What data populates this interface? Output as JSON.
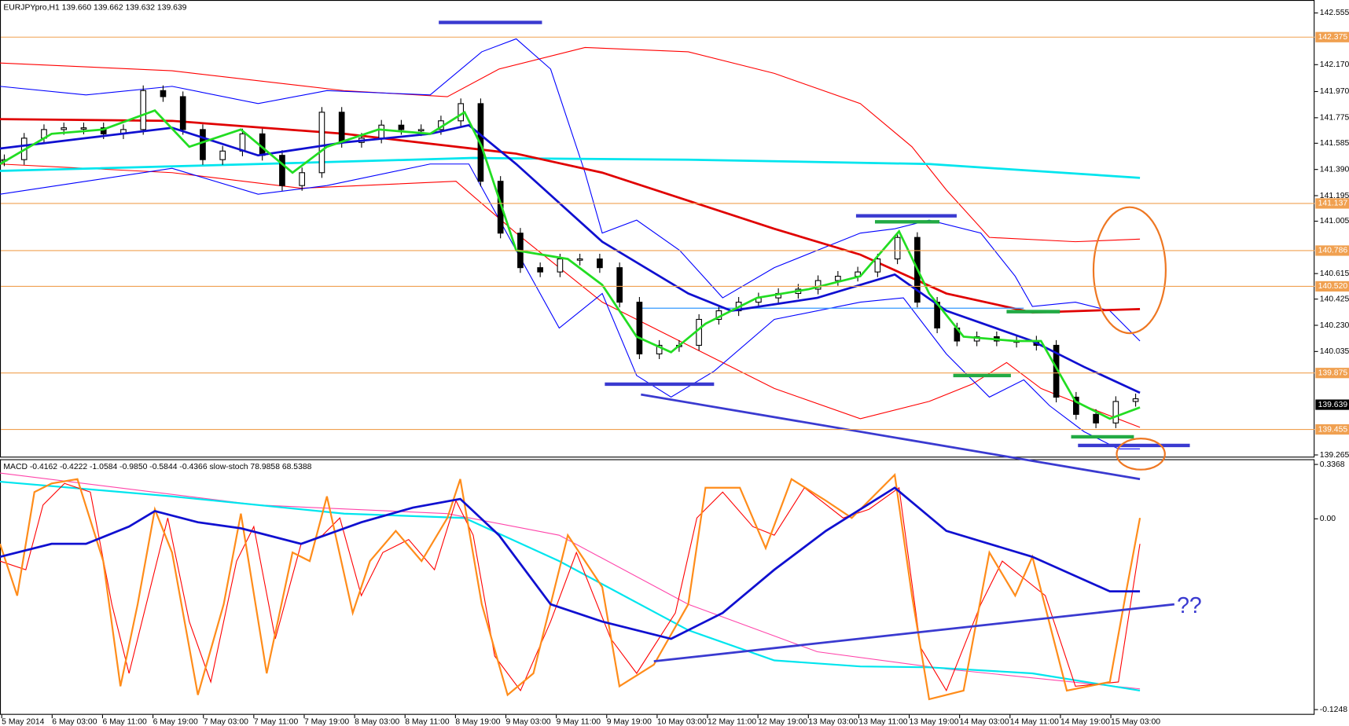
{
  "header": {
    "symbol_line": "EURJPYpro,H1  139.660 139.662 139.632 139.639"
  },
  "price_axis": {
    "ticks": [
      "142.555",
      "142.170",
      "141.970",
      "141.775",
      "141.585",
      "141.390",
      "141.195",
      "141.005",
      "140.615",
      "140.425",
      "140.230",
      "140.035",
      "139.265"
    ]
  },
  "levels": [
    "142.375",
    "141.137",
    "140.786",
    "140.520",
    "139.875",
    "139.455"
  ],
  "current_price": "139.639",
  "candles": {
    "closes": [
      141.463,
      141.623,
      141.687,
      141.7,
      141.7,
      141.655,
      141.687,
      141.977,
      141.932,
      141.687,
      141.463,
      141.527,
      141.655,
      141.495,
      141.27,
      141.366,
      141.816,
      141.591,
      141.623,
      141.72,
      141.687,
      141.687,
      141.752,
      141.88,
      141.302,
      140.916,
      140.659,
      140.627,
      140.724,
      140.724,
      140.659,
      140.402,
      140.017,
      140.081,
      140.081,
      140.274,
      140.338,
      140.402,
      140.434,
      140.467,
      140.499,
      140.563,
      140.595,
      140.627,
      140.724,
      140.884,
      140.402,
      140.21,
      140.113,
      140.145,
      140.113,
      140.113,
      140.081,
      139.695,
      139.567,
      139.503,
      139.663,
      139.683
    ]
  },
  "indicator": {
    "header": "MACD -0.4162 -0.4222 -1.0584 -0.9850 -0.5844 -0.4366  slow-stoch 78.9858 68.5388",
    "ticks": [
      "0.3368",
      "0.00",
      "-0.1248"
    ]
  },
  "time_axis": {
    "labels": [
      "5 May 2014",
      "6 May 03:00",
      "6 May 11:00",
      "6 May 19:00",
      "7 May 03:00",
      "7 May 11:00",
      "7 May 19:00",
      "8 May 03:00",
      "8 May 11:00",
      "8 May 19:00",
      "9 May 03:00",
      "9 May 11:00",
      "9 May 19:00",
      "10 May 03:00",
      "12 May 11:00",
      "12 May 19:00",
      "13 May 03:00",
      "13 May 11:00",
      "13 May 19:00",
      "14 May 03:00",
      "14 May 11:00",
      "14 May 19:00",
      "15 May 03:00"
    ]
  },
  "annotation": "??"
}
